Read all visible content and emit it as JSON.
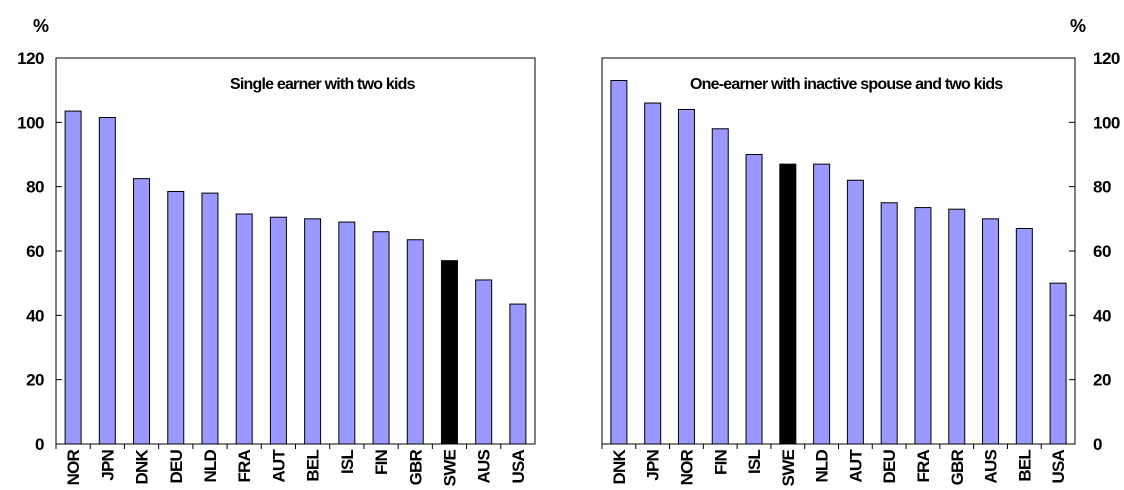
{
  "chart_data": [
    {
      "type": "bar",
      "title": "Single earner with two kids",
      "ylabel": "%",
      "ylim": [
        0,
        120
      ],
      "yticks": [
        "0",
        "20",
        "40",
        "60",
        "80",
        "100",
        "120"
      ],
      "axis_side": "left",
      "categories": [
        "NOR",
        "JPN",
        "DNK",
        "DEU",
        "NLD",
        "FRA",
        "AUT",
        "BEL",
        "ISL",
        "FIN",
        "GBR",
        "SWE",
        "AUS",
        "USA"
      ],
      "values": [
        103.5,
        101.5,
        82.5,
        78.5,
        78,
        71.5,
        70.5,
        70,
        69,
        66,
        63.5,
        57,
        51,
        43.5
      ],
      "highlight": "SWE",
      "bar_color": "#9999ff",
      "highlight_color": "#000000"
    },
    {
      "type": "bar",
      "title": "One-earner with inactive spouse and two kids",
      "ylabel": "%",
      "ylim": [
        0,
        120
      ],
      "yticks": [
        "0",
        "20",
        "40",
        "60",
        "80",
        "100",
        "120"
      ],
      "axis_side": "right",
      "categories": [
        "DNK",
        "JPN",
        "NOR",
        "FIN",
        "ISL",
        "SWE",
        "NLD",
        "AUT",
        "DEU",
        "FRA",
        "GBR",
        "AUS",
        "BEL",
        "USA"
      ],
      "values": [
        113,
        106,
        104,
        98,
        90,
        87,
        87,
        82,
        75,
        73.5,
        73,
        70,
        67,
        50
      ],
      "highlight": "SWE",
      "bar_color": "#9999ff",
      "highlight_color": "#000000"
    }
  ]
}
